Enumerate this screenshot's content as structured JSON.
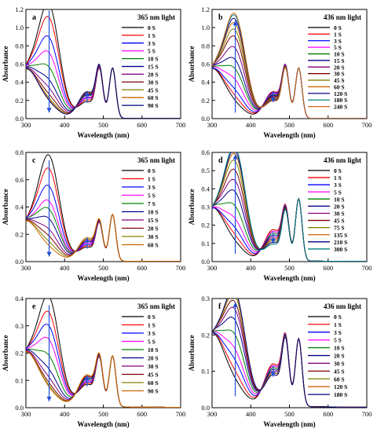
{
  "chart_data": [
    {
      "id": "a",
      "type": "line",
      "panel_label": "a",
      "annotation": "365 nm light",
      "xlabel": "Wavelength (nm)",
      "ylabel": "Absorbance",
      "xlim": [
        300,
        700
      ],
      "ylim": [
        0.0,
        1.2
      ],
      "xticks": [
        300,
        400,
        500,
        600,
        700
      ],
      "yticks": [
        0.0,
        0.2,
        0.4,
        0.6,
        0.8,
        1.0,
        1.2
      ],
      "arrow_down_at": 360,
      "arrow_up_at": 458,
      "legend": [
        "0 S",
        "1 S",
        "3 S",
        "5 S",
        "10 S",
        "15 S",
        "20 S",
        "30 S",
        "45 S",
        "60 S",
        "90 S"
      ],
      "peak_360": [
        1.17,
        1.02,
        0.8,
        0.63,
        0.47,
        0.33,
        0.24,
        0.17,
        0.13,
        0.11,
        0.1
      ],
      "base_300": [
        0.48,
        0.49,
        0.5,
        0.5,
        0.51,
        0.52,
        0.52,
        0.52,
        0.52,
        0.53,
        0.53
      ],
      "band_460": [
        0.18,
        0.2,
        0.22,
        0.23,
        0.25,
        0.26,
        0.27,
        0.28,
        0.28,
        0.29,
        0.29
      ],
      "band_490": 0.49,
      "band_525": 0.55
    },
    {
      "id": "b",
      "type": "line",
      "panel_label": "b",
      "annotation": "436 nm light",
      "xlabel": "Wavelength (nm)",
      "ylabel": "Absorbance",
      "xlim": [
        300,
        700
      ],
      "ylim": [
        0.0,
        1.2
      ],
      "xticks": [
        300,
        400,
        500,
        600,
        700
      ],
      "yticks": [
        0.0,
        0.2,
        0.4,
        0.6,
        0.8,
        1.0,
        1.2
      ],
      "arrow_up_at": 360,
      "arrow_down_at": 458,
      "legend": [
        "0 S",
        "1 S",
        "3 S",
        "5 S",
        "10 S",
        "15 S",
        "20 S",
        "30 S",
        "45 S",
        "60 S",
        "120 S",
        "180 S",
        "240 S"
      ],
      "peak_360": [
        0.1,
        0.15,
        0.22,
        0.33,
        0.45,
        0.55,
        0.68,
        0.8,
        0.88,
        0.95,
        1.0,
        1.04,
        1.06
      ],
      "base_300": [
        0.53,
        0.53,
        0.52,
        0.52,
        0.51,
        0.51,
        0.5,
        0.5,
        0.49,
        0.49,
        0.48,
        0.48,
        0.48
      ],
      "band_460": [
        0.29,
        0.29,
        0.28,
        0.27,
        0.26,
        0.25,
        0.24,
        0.23,
        0.22,
        0.21,
        0.2,
        0.19,
        0.19
      ],
      "band_490": 0.49,
      "band_525": 0.55
    },
    {
      "id": "c",
      "type": "line",
      "panel_label": "c",
      "annotation": "365 nm light",
      "xlabel": "Wavelength (nm)",
      "ylabel": "Absorbance",
      "xlim": [
        300,
        700
      ],
      "ylim": [
        0.0,
        0.8
      ],
      "xticks": [
        300,
        400,
        500,
        600,
        700
      ],
      "yticks": [
        0.0,
        0.2,
        0.4,
        0.6,
        0.8
      ],
      "arrow_down_at": 360,
      "arrow_up_at": 458,
      "legend": [
        "0 S",
        "1 S",
        "3 S",
        "5 S",
        "7 S",
        "10 S",
        "15 S",
        "20 S",
        "30 S",
        "60 S"
      ],
      "peak_360": [
        0.73,
        0.63,
        0.5,
        0.39,
        0.33,
        0.26,
        0.18,
        0.13,
        0.09,
        0.06
      ],
      "base_300": [
        0.24,
        0.25,
        0.26,
        0.26,
        0.27,
        0.27,
        0.28,
        0.28,
        0.28,
        0.28
      ],
      "band_460": [
        0.1,
        0.11,
        0.12,
        0.13,
        0.14,
        0.14,
        0.15,
        0.16,
        0.16,
        0.17
      ],
      "band_490": 0.25,
      "band_525": 0.34
    },
    {
      "id": "d",
      "type": "line",
      "panel_label": "d",
      "annotation": "436 nm light",
      "xlabel": "Wavelength (nm)",
      "ylabel": "Absorbance",
      "xlim": [
        300,
        700
      ],
      "ylim": [
        0.0,
        0.6
      ],
      "xticks": [
        300,
        400,
        500,
        600,
        700
      ],
      "yticks": [
        0.0,
        0.1,
        0.2,
        0.3,
        0.4,
        0.5,
        0.6
      ],
      "arrow_up_at": 360,
      "arrow_down_at": 458,
      "legend": [
        "0 S",
        "1 S",
        "3 S",
        "5 S",
        "10 S",
        "20 S",
        "30 S",
        "45 S",
        "75 S",
        "135 S",
        "210 S",
        "300 S"
      ],
      "peak_360": [
        0.06,
        0.09,
        0.13,
        0.18,
        0.25,
        0.33,
        0.39,
        0.45,
        0.5,
        0.54,
        0.56,
        0.58
      ],
      "base_300": [
        0.28,
        0.28,
        0.27,
        0.27,
        0.27,
        0.26,
        0.26,
        0.25,
        0.25,
        0.24,
        0.24,
        0.24
      ],
      "band_460": [
        0.17,
        0.17,
        0.16,
        0.16,
        0.15,
        0.14,
        0.13,
        0.12,
        0.11,
        0.1,
        0.1,
        0.09
      ],
      "band_490": 0.25,
      "band_525": 0.34
    },
    {
      "id": "e",
      "type": "line",
      "panel_label": "e",
      "annotation": "365 nm light",
      "xlabel": "Wavelength (nm)",
      "ylabel": "Absorbance",
      "xlim": [
        300,
        700
      ],
      "ylim": [
        0.0,
        0.4
      ],
      "xticks": [
        300,
        400,
        500,
        600,
        700
      ],
      "yticks": [
        0.0,
        0.1,
        0.2,
        0.3,
        0.4
      ],
      "arrow_down_at": 360,
      "arrow_up_at": 458,
      "legend": [
        "0 S",
        "1 S",
        "3 S",
        "5 S",
        "10 S",
        "20 S",
        "30 S",
        "45 S",
        "60 S",
        "90 S"
      ],
      "peak_360": [
        0.37,
        0.31,
        0.26,
        0.21,
        0.15,
        0.1,
        0.07,
        0.05,
        0.04,
        0.035
      ],
      "base_300": [
        0.17,
        0.175,
        0.18,
        0.18,
        0.185,
        0.19,
        0.19,
        0.19,
        0.19,
        0.19
      ],
      "band_460": [
        0.08,
        0.085,
        0.09,
        0.095,
        0.1,
        0.105,
        0.11,
        0.11,
        0.115,
        0.115
      ],
      "band_490": 0.155,
      "band_525": 0.185
    },
    {
      "id": "f",
      "type": "line",
      "panel_label": "f",
      "annotation": "436 nm light",
      "xlabel": "Wavelength (nm)",
      "ylabel": "Absorbance",
      "xlim": [
        300,
        700
      ],
      "ylim": [
        0.0,
        0.3
      ],
      "xticks": [
        300,
        400,
        500,
        600,
        700
      ],
      "yticks": [
        0.0,
        0.1,
        0.2,
        0.3
      ],
      "arrow_up_at": 360,
      "arrow_down_at": 458,
      "legend": [
        "0 S",
        "1 S",
        "3 S",
        "5 S",
        "10 S",
        "20 S",
        "30 S",
        "45 S",
        "60 S",
        "120 S",
        "180 S"
      ],
      "peak_360": [
        0.04,
        0.06,
        0.09,
        0.12,
        0.16,
        0.2,
        0.23,
        0.25,
        0.27,
        0.28,
        0.285
      ],
      "base_300": [
        0.19,
        0.19,
        0.185,
        0.185,
        0.18,
        0.18,
        0.175,
        0.175,
        0.17,
        0.17,
        0.17
      ],
      "band_460": [
        0.115,
        0.115,
        0.11,
        0.11,
        0.105,
        0.1,
        0.095,
        0.09,
        0.09,
        0.085,
        0.085
      ],
      "band_490": 0.16,
      "band_525": 0.185
    }
  ]
}
